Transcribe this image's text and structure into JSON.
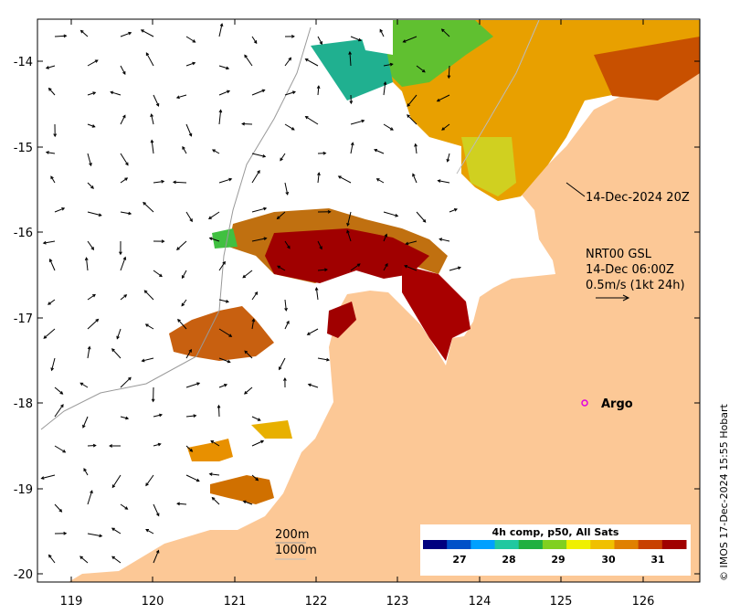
{
  "map": {
    "x_ticks": [
      "119",
      "120",
      "121",
      "122",
      "123",
      "124",
      "125",
      "126"
    ],
    "y_ticks": [
      "-14",
      "-15",
      "-16",
      "-17",
      "-18",
      "-19",
      "-20"
    ],
    "colors": {
      "land": "#fcc896",
      "ocean": "#ffffff",
      "sst_scale": [
        "#00007f",
        "#0050c8",
        "#00a0ff",
        "#20c8a0",
        "#20b040",
        "#80d020",
        "#f0f000",
        "#f0c000",
        "#e08000",
        "#c84000",
        "#a00000"
      ]
    },
    "overlay_label": "14-Dec-2024 20Z",
    "legend_block": {
      "line1": "NRT00 GSL",
      "line2": "14-Dec 06:00Z",
      "line3": "0.5m/s (1kt 24h)"
    },
    "argo_label": "Argo",
    "isobaths": {
      "label_200": "200m",
      "label_1000": "1000m"
    },
    "colorbar": {
      "title": "4h comp, p50, All Sats",
      "ticks": [
        "27",
        "28",
        "29",
        "30",
        "31"
      ]
    },
    "credit": "© IMOS 17-Dec-2024 15:55 Hobart"
  }
}
